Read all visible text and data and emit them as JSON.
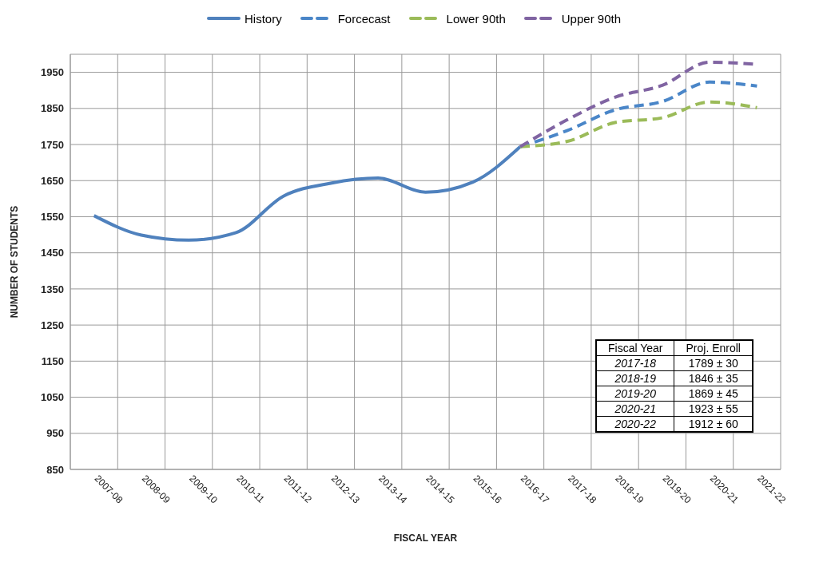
{
  "chart_data": {
    "type": "line",
    "xlabel": "FISCAL YEAR",
    "ylabel": "NUMBER OF STUDENTS",
    "categories": [
      "2007-08",
      "2008-09",
      "2009-10",
      "2010-11",
      "2011-12",
      "2012-13",
      "2013-14",
      "2014-15",
      "2015-16",
      "2016-17",
      "2017-18",
      "2018-19",
      "2019-20",
      "2020-21",
      "2021-22"
    ],
    "series": [
      {
        "name": "History",
        "color": "#4f81bd",
        "line_style": "solid",
        "values": [
          1553,
          1499,
          1485,
          1506,
          1607,
          1643,
          1657,
          1618,
          1646,
          1744,
          null,
          null,
          null,
          null,
          null
        ]
      },
      {
        "name": "Forcecast",
        "color": "#4a86c8",
        "line_style": "dashed",
        "values": [
          null,
          null,
          null,
          null,
          null,
          null,
          null,
          null,
          null,
          1744,
          1789,
          1846,
          1869,
          1923,
          1912
        ]
      },
      {
        "name": "Lower 90th",
        "color": "#9bbb59",
        "line_style": "dashed",
        "values": [
          null,
          null,
          null,
          null,
          null,
          null,
          null,
          null,
          null,
          1744,
          1759,
          1811,
          1824,
          1868,
          1852
        ]
      },
      {
        "name": "Upper 90th",
        "color": "#8064a2",
        "line_style": "dashed",
        "values": [
          null,
          null,
          null,
          null,
          null,
          null,
          null,
          null,
          null,
          1744,
          1819,
          1881,
          1914,
          1978,
          1972
        ]
      }
    ],
    "ylim": [
      850,
      2000
    ],
    "yticks": [
      850,
      950,
      1050,
      1150,
      1250,
      1350,
      1450,
      1550,
      1650,
      1750,
      1850,
      1950
    ],
    "grid": true,
    "legend": "top",
    "annotations": [
      "Fiscal Year",
      "Proj. Enroll",
      "2017-18",
      "1789 ± 30",
      "2018-19",
      "1846 ± 35",
      "2019-20",
      "1869 ± 45",
      "2020-21",
      "1923 ± 55",
      "2020-22",
      "1912 ± 60"
    ]
  }
}
